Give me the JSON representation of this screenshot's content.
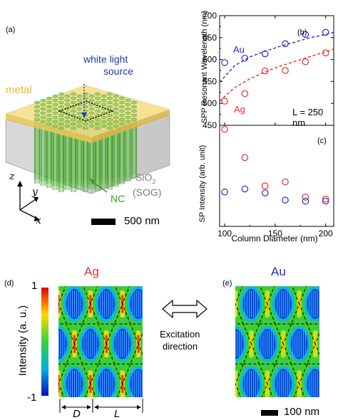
{
  "panel_a": {
    "label": "(a)",
    "metal_label": "metal",
    "source_label_1": "white light",
    "source_label_2": "source",
    "sio2_label": "SiO",
    "sio2_sub": "2",
    "sog_label": "(SOG)",
    "nc_label": "NC",
    "axis_z": "z",
    "axis_y": "y",
    "axis_x": "x",
    "scalebar_label": "500 nm"
  },
  "panel_d": {
    "label": "(d)",
    "title": "Ag",
    "colorbar_max": "1",
    "colorbar_min": "-1",
    "colorbar_title": "Intensity (a. u.)",
    "dim_d": "D",
    "dim_l": "L"
  },
  "panel_e": {
    "label": "(e)",
    "title": "Au",
    "scalebar_label": "100 nm"
  },
  "excitation": {
    "line1": "Excitation",
    "line2": "direction"
  },
  "colors": {
    "au": "#2a2ad0",
    "ag": "#e03030",
    "metal": "#f3d777",
    "nc": "#3a9a2a",
    "source": "#1a3ab8"
  },
  "chart_data": [
    {
      "type": "scatter",
      "panel": "(b)",
      "xlabel": "",
      "ylabel": "SPP Resonant Wavelength (nm)",
      "xlim": [
        95,
        208
      ],
      "ylim": [
        450,
        700
      ],
      "yticks": [
        450,
        500,
        550,
        600,
        650,
        700
      ],
      "annotation": "L = 250 nm",
      "series": [
        {
          "name": "Au",
          "color": "#2a2ad0",
          "x": [
            100,
            120,
            140,
            160,
            180,
            200
          ],
          "y": [
            593,
            603,
            613,
            636,
            657,
            662
          ],
          "fit_x": [
            95,
            110,
            125,
            140,
            155,
            170,
            185,
            200,
            208
          ],
          "fit_y": [
            548,
            586,
            606,
            619,
            630,
            640,
            650,
            657,
            662
          ]
        },
        {
          "name": "Ag",
          "color": "#e03030",
          "x": [
            100,
            120,
            140,
            160,
            180,
            200
          ],
          "y": [
            505,
            522,
            574,
            575,
            595,
            615
          ],
          "fit_x": [
            95,
            110,
            125,
            140,
            155,
            170,
            185,
            200,
            208
          ],
          "fit_y": [
            505,
            536,
            556,
            572,
            585,
            596,
            607,
            617,
            624
          ]
        }
      ]
    },
    {
      "type": "scatter",
      "panel": "(c)",
      "xlabel": "Column Diameter (nm)",
      "ylabel": "SP Intensity (arb. unit)",
      "xlim": [
        95,
        208
      ],
      "ylim": [
        0,
        1
      ],
      "xticks": [
        100,
        150,
        200
      ],
      "series": [
        {
          "name": "Au",
          "color": "#2a2ad0",
          "x": [
            100,
            120,
            140,
            160,
            180,
            200
          ],
          "y": [
            0.34,
            0.37,
            0.33,
            0.26,
            0.25,
            0.25
          ]
        },
        {
          "name": "Ag",
          "color": "#e03030",
          "x": [
            100,
            120,
            140,
            160,
            180,
            200
          ],
          "y": [
            0.96,
            0.68,
            0.4,
            0.44,
            0.29,
            0.27
          ]
        }
      ]
    }
  ]
}
